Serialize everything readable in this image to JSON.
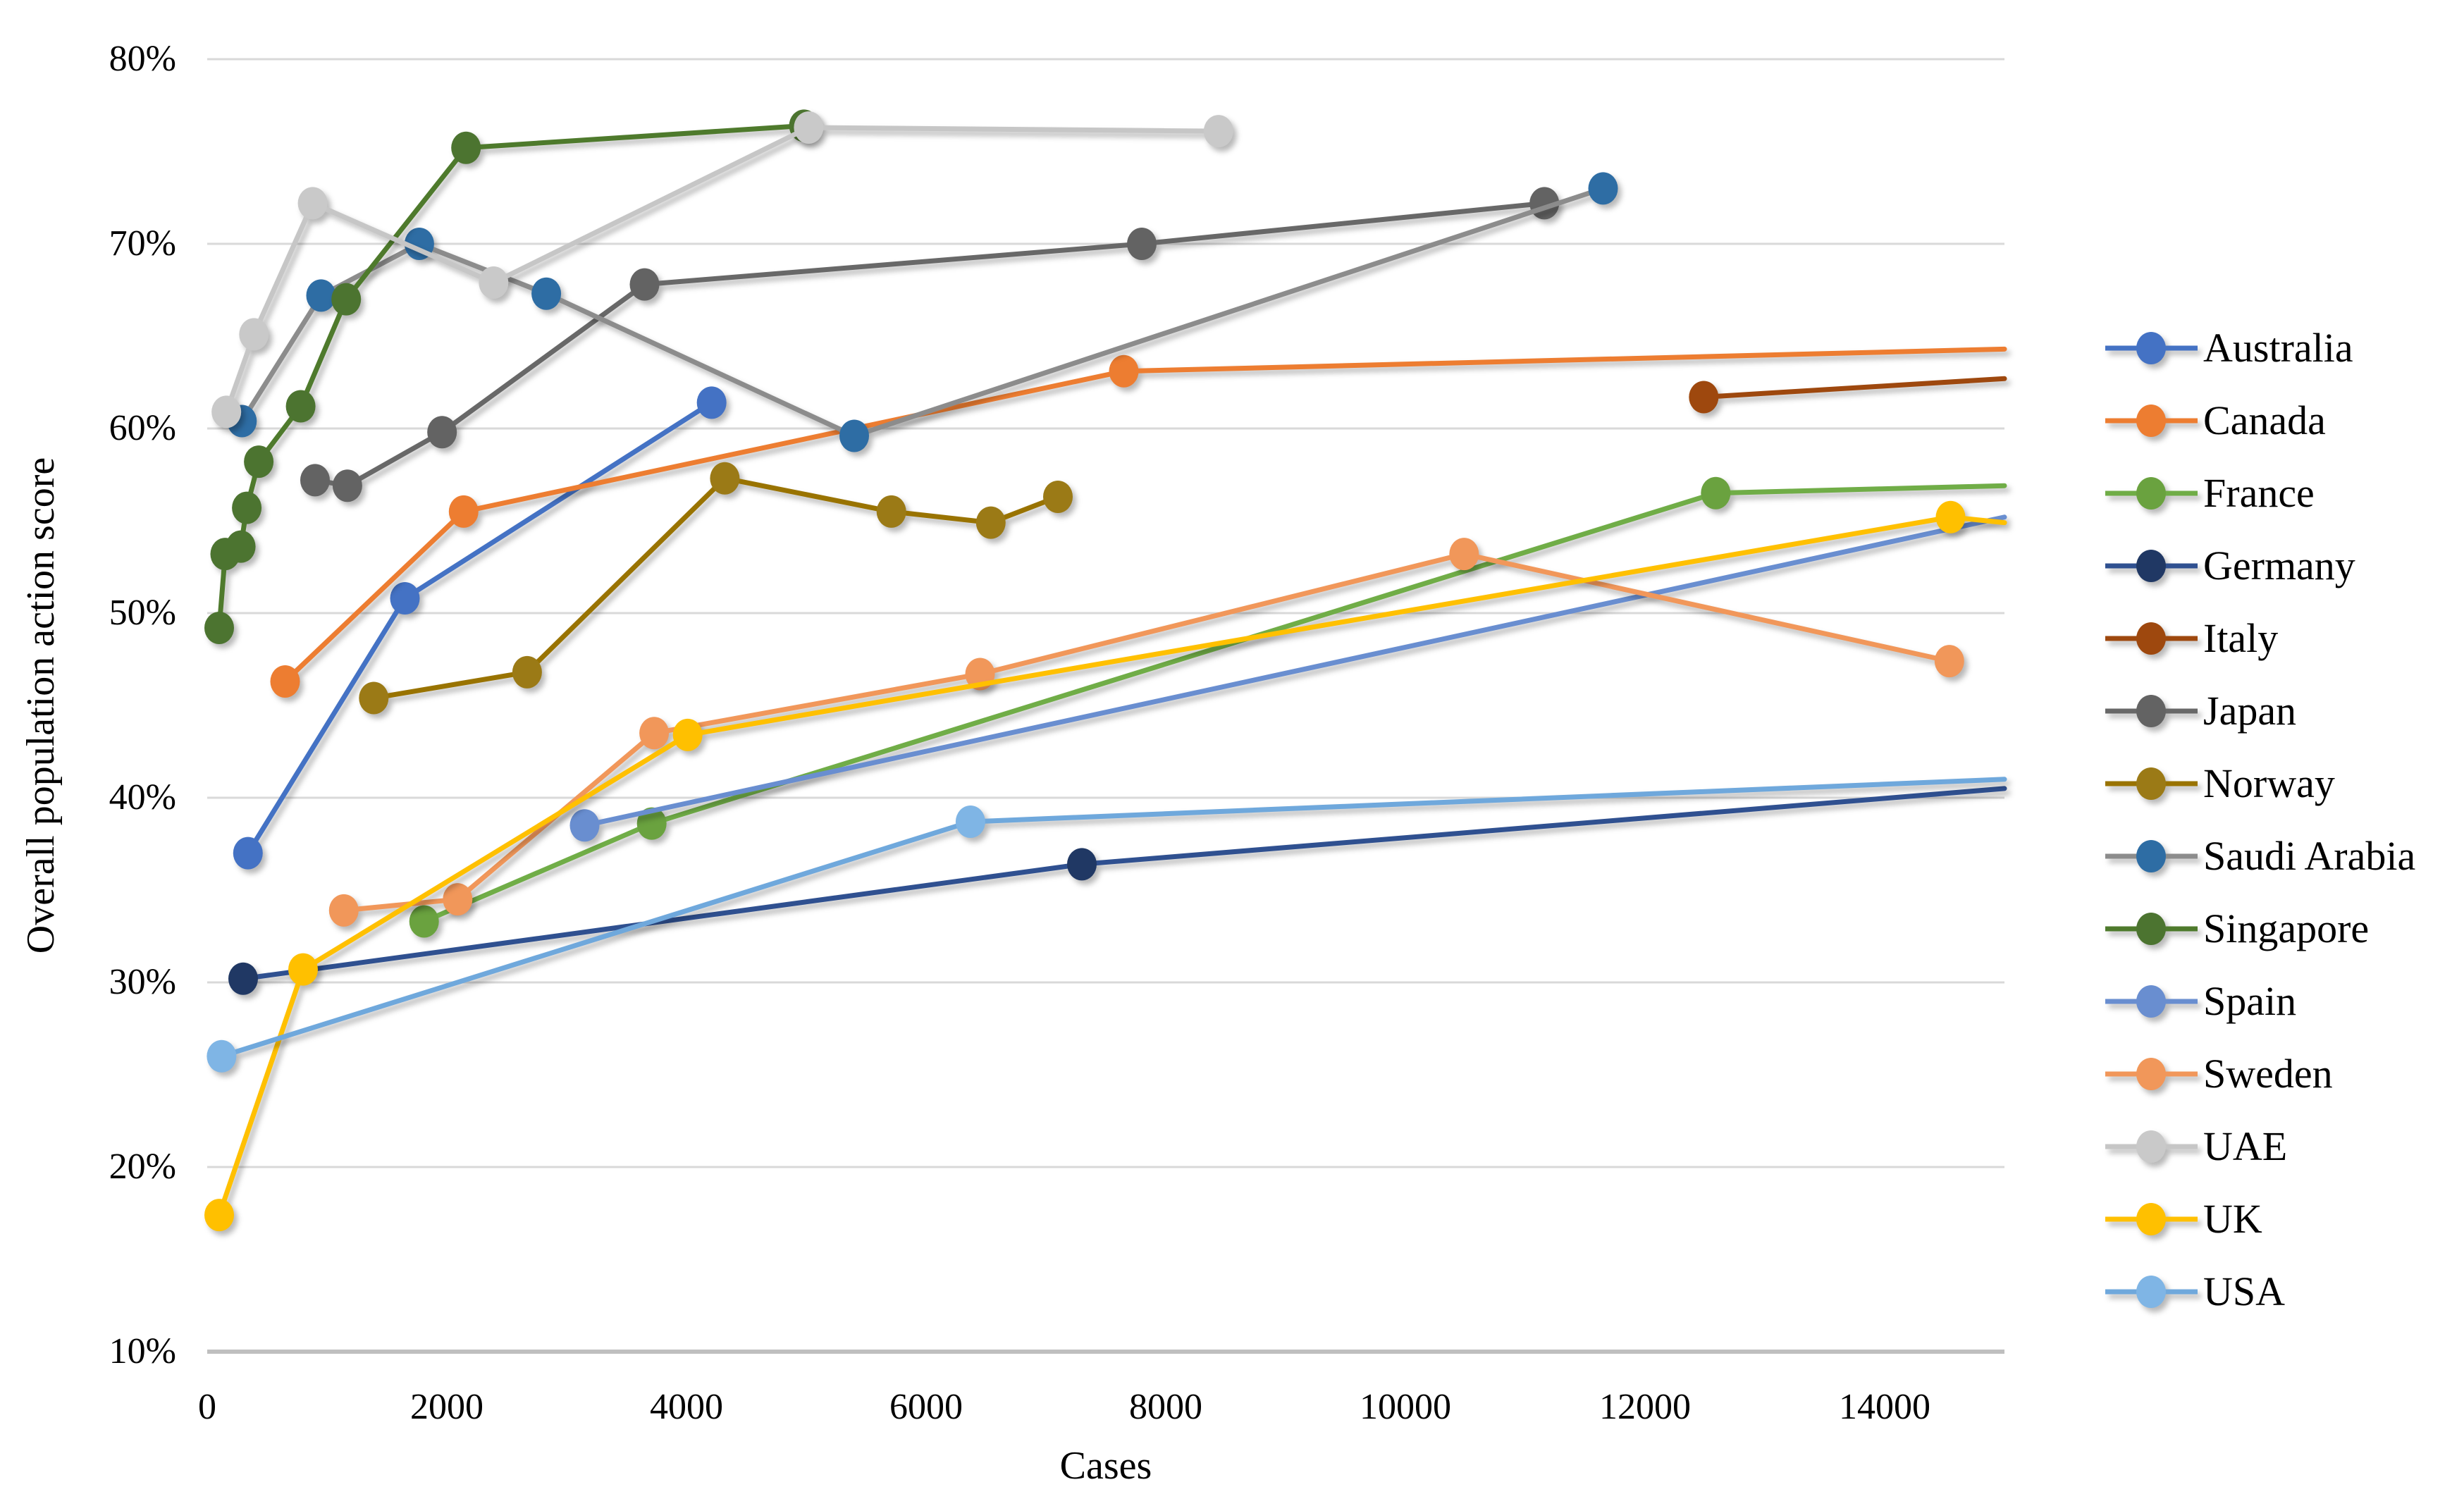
{
  "chart_data": {
    "type": "line",
    "title": "",
    "xlabel": "Cases",
    "ylabel": "Overall population action score",
    "xlim": [
      0,
      15000
    ],
    "ylim": [
      10,
      80
    ],
    "x_ticks": [
      0,
      2000,
      4000,
      6000,
      8000,
      10000,
      12000,
      14000
    ],
    "y_ticks": [
      10,
      20,
      30,
      40,
      50,
      60,
      70,
      80
    ],
    "y_tick_suffix": "%",
    "grid": "horizontal",
    "legend_position": "right",
    "colors": {
      "gridline": "#D9D9D9",
      "axis_line": "#BFBFBF",
      "text": "#000000"
    },
    "series": [
      {
        "name": "Australia",
        "line_color": "#4472C4",
        "marker_color": "#4472C4",
        "last_point_marker": true,
        "points": [
          [
            340,
            37.0
          ],
          [
            1650,
            50.8
          ],
          [
            4210,
            61.4
          ]
        ]
      },
      {
        "name": "Canada",
        "line_color": "#ED7D31",
        "marker_color": "#ED7D31",
        "last_point_marker": false,
        "points": [
          [
            650,
            46.3
          ],
          [
            2140,
            55.5
          ],
          [
            7650,
            63.1
          ],
          [
            15000,
            64.3
          ]
        ]
      },
      {
        "name": "France",
        "line_color": "#70AD47",
        "marker_color": "#6AA23F",
        "last_point_marker": false,
        "points": [
          [
            1810,
            33.3
          ],
          [
            3710,
            38.6
          ],
          [
            12590,
            56.5
          ],
          [
            15000,
            56.9
          ]
        ]
      },
      {
        "name": "Germany",
        "line_color": "#2F5090",
        "marker_color": "#203864",
        "last_point_marker": false,
        "points": [
          [
            300,
            30.2
          ],
          [
            7300,
            36.4
          ],
          [
            15000,
            40.5
          ]
        ]
      },
      {
        "name": "Italy",
        "line_color": "#9E480E",
        "marker_color": "#9E480E",
        "last_point_marker": false,
        "points": [
          [
            12490,
            61.7
          ],
          [
            15000,
            62.7
          ]
        ]
      },
      {
        "name": "Japan",
        "line_color": "#686868",
        "marker_color": "#636363",
        "last_point_marker": true,
        "points": [
          [
            900,
            57.2
          ],
          [
            1170,
            56.9
          ],
          [
            1960,
            59.8
          ],
          [
            3650,
            67.8
          ],
          [
            7800,
            70.0
          ],
          [
            11160,
            72.2
          ]
        ]
      },
      {
        "name": "Norway",
        "line_color": "#997300",
        "marker_color": "#9B7A16",
        "last_point_marker": true,
        "points": [
          [
            1390,
            45.4
          ],
          [
            2670,
            46.8
          ],
          [
            4320,
            57.3
          ],
          [
            5710,
            55.5
          ],
          [
            6540,
            54.9
          ],
          [
            7100,
            56.3
          ]
        ]
      },
      {
        "name": "Saudi Arabia",
        "line_color": "#8C8C8C",
        "marker_color": "#2E6DA4",
        "last_point_marker": true,
        "points": [
          [
            290,
            60.4
          ],
          [
            950,
            67.2
          ],
          [
            1770,
            70.0
          ],
          [
            2830,
            67.3
          ],
          [
            5400,
            59.6
          ],
          [
            11650,
            73.0
          ]
        ]
      },
      {
        "name": "Singapore",
        "line_color": "#4E7A2C",
        "marker_color": "#4C7430",
        "last_point_marker": true,
        "points": [
          [
            100,
            49.2
          ],
          [
            150,
            53.2
          ],
          [
            280,
            53.6
          ],
          [
            330,
            55.7
          ],
          [
            430,
            58.2
          ],
          [
            780,
            61.2
          ],
          [
            1160,
            67.0
          ],
          [
            2160,
            75.2
          ],
          [
            4980,
            76.4
          ]
        ]
      },
      {
        "name": "Spain",
        "line_color": "#698ED0",
        "marker_color": "#698ED0",
        "last_point_marker": false,
        "points": [
          [
            3150,
            38.5
          ],
          [
            15000,
            55.2
          ]
        ]
      },
      {
        "name": "Sweden",
        "line_color": "#F1975A",
        "marker_color": "#F1975A",
        "last_point_marker": true,
        "points": [
          [
            1140,
            33.9
          ],
          [
            2090,
            34.5
          ],
          [
            3730,
            43.5
          ],
          [
            6450,
            46.7
          ],
          [
            10490,
            53.2
          ],
          [
            14540,
            47.4
          ]
        ]
      },
      {
        "name": "UAE",
        "line_color": "#C6C6C6",
        "marker_color": "#C9C9C9",
        "last_point_marker": true,
        "points": [
          [
            160,
            60.9
          ],
          [
            390,
            65.1
          ],
          [
            880,
            72.2
          ],
          [
            2390,
            67.9
          ],
          [
            5020,
            76.3
          ],
          [
            8440,
            76.1
          ]
        ]
      },
      {
        "name": "UK",
        "line_color": "#FFC000",
        "marker_color": "#FFC000",
        "last_point_marker": false,
        "points": [
          [
            100,
            17.4
          ],
          [
            800,
            30.7
          ],
          [
            4010,
            43.4
          ],
          [
            14550,
            55.2
          ],
          [
            15000,
            54.9
          ]
        ]
      },
      {
        "name": "USA",
        "line_color": "#6FA8DC",
        "marker_color": "#7FB5E5",
        "last_point_marker": false,
        "points": [
          [
            120,
            26.0
          ],
          [
            6370,
            38.7
          ],
          [
            15000,
            41.0
          ]
        ]
      }
    ]
  },
  "layout_labels": {
    "x_axis_title": "Cases",
    "y_axis_title": "Overall population action score"
  }
}
